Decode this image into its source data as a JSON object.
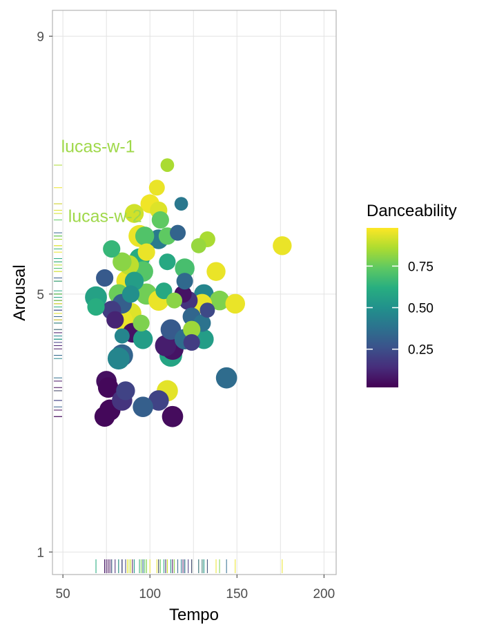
{
  "chart_data": {
    "type": "scatter",
    "xlabel": "Tempo",
    "ylabel": "Arousal",
    "xlim": [
      44,
      207
    ],
    "ylim": [
      0.65,
      9.4
    ],
    "x_ticks": [
      50,
      100,
      150,
      200
    ],
    "y_ticks": [
      1,
      5,
      9
    ],
    "x_gridlines": [
      50,
      75,
      100,
      125,
      150,
      175,
      200
    ],
    "y_gridlines": [
      1,
      5,
      9
    ],
    "grid": true,
    "color_scale": "viridis",
    "colors": {
      "viridis": [
        "#440154",
        "#472d7b",
        "#3b528b",
        "#2c728e",
        "#21918c",
        "#28ae80",
        "#5ec962",
        "#addc30",
        "#fde725"
      ],
      "annotation": "#9fd84a",
      "grid": "#e3e3e3",
      "panel_border": "#b3b3b3"
    },
    "legend": {
      "title": "Danceability",
      "position": "right",
      "ticks": [
        0.25,
        0.5,
        0.75
      ],
      "tick_labels": [
        "0.25",
        "0.50",
        "0.75"
      ],
      "range": [
        0.02,
        0.98
      ]
    },
    "annotations": [
      {
        "text": "lucas-w-1",
        "x": 49,
        "y": 7.2
      },
      {
        "text": "lucas-w-2",
        "x": 53,
        "y": 6.12
      }
    ],
    "rug": true,
    "fields": [
      "tempo",
      "arousal",
      "danceability",
      "size"
    ],
    "points": [
      [
        110,
        7.0,
        0.87,
        0.35
      ],
      [
        104,
        6.65,
        0.97,
        0.5
      ],
      [
        118,
        6.4,
        0.4,
        0.35
      ],
      [
        100,
        6.4,
        0.98,
        0.7
      ],
      [
        105,
        6.3,
        0.95,
        0.6
      ],
      [
        91,
        6.25,
        0.93,
        0.7
      ],
      [
        106,
        6.15,
        0.75,
        0.6
      ],
      [
        116,
        5.95,
        0.32,
        0.5
      ],
      [
        110,
        5.9,
        0.75,
        0.6
      ],
      [
        94,
        5.9,
        0.97,
        0.9
      ],
      [
        97,
        5.9,
        0.72,
        0.7
      ],
      [
        105,
        5.85,
        0.41,
        0.75
      ],
      [
        133,
        5.85,
        0.87,
        0.5
      ],
      [
        128,
        5.75,
        0.84,
        0.45
      ],
      [
        176,
        5.75,
        0.97,
        0.7
      ],
      [
        98,
        5.65,
        0.97,
        0.6
      ],
      [
        78,
        5.7,
        0.66,
        0.6
      ],
      [
        84,
        5.5,
        0.82,
        0.7
      ],
      [
        94,
        5.55,
        0.61,
        0.8
      ],
      [
        110,
        5.5,
        0.6,
        0.55
      ],
      [
        88,
        5.45,
        0.9,
        0.75
      ],
      [
        120,
        5.4,
        0.7,
        0.75
      ],
      [
        96,
        5.35,
        0.73,
        0.8
      ],
      [
        138,
        5.35,
        0.97,
        0.7
      ],
      [
        74,
        5.25,
        0.28,
        0.6
      ],
      [
        120,
        5.2,
        0.34,
        0.55
      ],
      [
        87,
        5.2,
        0.97,
        0.9
      ],
      [
        91,
        5.2,
        0.55,
        0.7
      ],
      [
        108,
        5.05,
        0.6,
        0.55
      ],
      [
        89,
        5.0,
        0.49,
        0.6
      ],
      [
        131,
        5.0,
        0.45,
        0.75
      ],
      [
        119,
        5.0,
        0.05,
        0.6
      ],
      [
        82,
        5.0,
        0.77,
        0.75
      ],
      [
        98,
        5.0,
        0.78,
        0.85
      ],
      [
        69,
        4.95,
        0.57,
        0.9
      ],
      [
        105,
        4.9,
        0.97,
        0.8
      ],
      [
        114,
        4.9,
        0.82,
        0.5
      ],
      [
        122,
        4.9,
        0.15,
        0.7
      ],
      [
        140,
        4.9,
        0.8,
        0.75
      ],
      [
        130,
        4.85,
        0.97,
        0.75
      ],
      [
        84,
        4.85,
        0.3,
        0.75
      ],
      [
        149,
        4.85,
        0.97,
        0.75
      ],
      [
        69,
        4.8,
        0.62,
        0.6
      ],
      [
        78,
        4.75,
        0.18,
        0.7
      ],
      [
        89,
        4.7,
        0.95,
        0.85
      ],
      [
        133,
        4.75,
        0.22,
        0.45
      ],
      [
        124,
        4.65,
        0.33,
        0.65
      ],
      [
        80,
        4.6,
        0.1,
        0.6
      ],
      [
        84,
        4.6,
        0.97,
        0.85
      ],
      [
        95,
        4.55,
        0.8,
        0.55
      ],
      [
        130,
        4.55,
        0.38,
        0.6
      ],
      [
        124,
        4.45,
        0.85,
        0.6
      ],
      [
        112,
        4.45,
        0.28,
        0.8
      ],
      [
        90,
        4.4,
        0.05,
        0.75
      ],
      [
        128,
        4.35,
        0.33,
        0.75
      ],
      [
        120,
        4.3,
        0.35,
        0.8
      ],
      [
        96,
        4.3,
        0.55,
        0.75
      ],
      [
        84,
        4.35,
        0.45,
        0.45
      ],
      [
        131,
        4.3,
        0.55,
        0.75
      ],
      [
        124,
        4.25,
        0.18,
        0.55
      ],
      [
        109,
        4.2,
        0.08,
        0.85
      ],
      [
        113,
        4.15,
        0.05,
        0.9
      ],
      [
        112,
        4.05,
        0.58,
        0.95
      ],
      [
        84,
        4.05,
        0.32,
        0.9
      ],
      [
        82,
        4.0,
        0.45,
        0.9
      ],
      [
        144,
        3.7,
        0.35,
        0.85
      ],
      [
        75,
        3.65,
        0.04,
        0.8
      ],
      [
        76,
        3.55,
        0.02,
        0.8
      ],
      [
        110,
        3.5,
        0.96,
        0.85
      ],
      [
        86,
        3.5,
        0.2,
        0.7
      ],
      [
        84,
        3.35,
        0.15,
        0.8
      ],
      [
        105,
        3.35,
        0.2,
        0.8
      ],
      [
        96,
        3.25,
        0.3,
        0.8
      ],
      [
        77,
        3.2,
        0.02,
        0.85
      ],
      [
        113,
        3.1,
        0.03,
        0.85
      ],
      [
        74,
        3.1,
        0.02,
        0.8
      ]
    ]
  }
}
